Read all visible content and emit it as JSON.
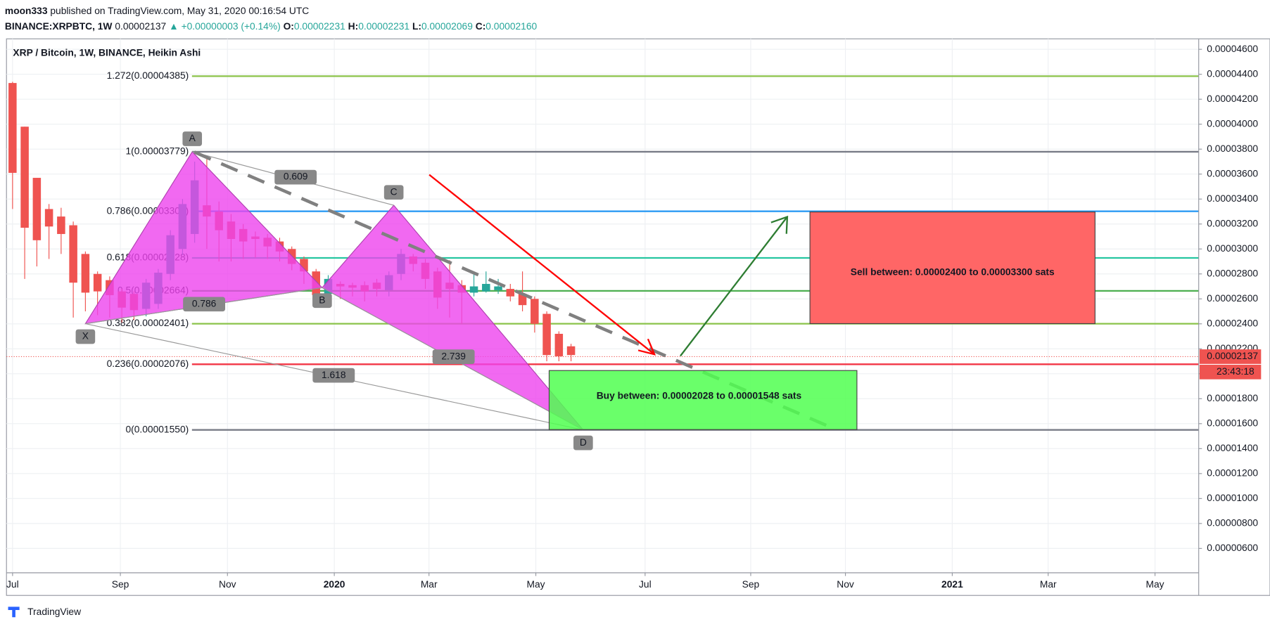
{
  "header": {
    "author": "moon333",
    "published": "published on TradingView.com, May 31, 2020 00:16:54 UTC",
    "symbol": "BINANCE:XRPBTC, 1W",
    "price": "0.00002137",
    "change": "+0.00000003 (+0.14%)",
    "ohlc": [
      {
        "key": "O:",
        "value": "0.00002231"
      },
      {
        "key": "H:",
        "value": "0.00002231"
      },
      {
        "key": "L:",
        "value": "0.00002069"
      },
      {
        "key": "C:",
        "value": "0.00002160"
      }
    ]
  },
  "footer": "TradingView",
  "chart_data": {
    "type": "candlestick",
    "title": "XRP / Bitcoin, 1W, BINANCE, Heikin Ashi",
    "x": [
      0,
      1,
      2,
      3,
      4,
      5,
      6,
      7,
      8,
      9,
      10,
      11,
      12,
      13,
      14,
      15,
      16,
      17,
      18,
      19,
      20,
      21,
      22,
      23,
      24,
      25,
      26,
      27,
      28,
      29,
      30,
      31,
      32,
      33,
      34,
      35,
      36,
      37,
      38,
      39,
      40,
      41,
      42,
      43,
      44,
      45,
      46
    ],
    "open": [
      4.33e-05,
      3.98e-05,
      3.57e-05,
      3.32e-05,
      3.26e-05,
      3.19e-05,
      2.96e-05,
      2.8e-05,
      2.75e-05,
      2.66e-05,
      2.64e-05,
      2.52e-05,
      2.56e-05,
      2.8e-05,
      3e-05,
      3.12e-05,
      3.35e-05,
      3.3e-05,
      3.22e-05,
      3.16e-05,
      3.1e-05,
      3.09e-05,
      3.06e-05,
      3e-05,
      2.92e-05,
      2.82e-05,
      2.64e-05,
      2.72e-05,
      2.71e-05,
      2.71e-05,
      2.73e-05,
      2.67e-05,
      2.8e-05,
      2.94e-05,
      2.89e-05,
      2.82e-05,
      2.73e-05,
      2.71e-05,
      2.65e-05,
      2.66e-05,
      2.67e-05,
      2.68e-05,
      2.64e-05,
      2.6e-05,
      2.48e-05,
      2.32e-05,
      2.22e-05
    ],
    "high": [
      4.34e-05,
      3.98e-05,
      3.57e-05,
      3.36e-05,
      3.33e-05,
      3.22e-05,
      2.98e-05,
      2.82e-05,
      2.78e-05,
      2.68e-05,
      2.66e-05,
      2.76e-05,
      2.84e-05,
      3.15e-05,
      3.4e-05,
      3.7e-05,
      3.75e-05,
      3.38e-05,
      3.28e-05,
      3.2e-05,
      3.14e-05,
      3.12e-05,
      3.09e-05,
      3.02e-05,
      2.94e-05,
      2.84e-05,
      2.79e-05,
      2.74e-05,
      2.73e-05,
      2.74e-05,
      2.76e-05,
      2.82e-05,
      3e-05,
      2.96e-05,
      2.92e-05,
      2.85e-05,
      2.91e-05,
      2.75e-05,
      2.8e-05,
      2.82e-05,
      2.76e-05,
      2.72e-05,
      2.82e-05,
      2.62e-05,
      2.5e-05,
      2.34e-05,
      2.24e-05
    ],
    "low": [
      3.32e-05,
      2.76e-05,
      2.86e-05,
      2.92e-05,
      2.96e-05,
      2.45e-05,
      2.5e-05,
      2.47e-05,
      2.45e-05,
      2.41e-05,
      2.43e-05,
      2.46e-05,
      2.52e-05,
      2.75e-05,
      2.95e-05,
      3.05e-05,
      3e-05,
      2.9e-05,
      2.9e-05,
      2.92e-05,
      2.93e-05,
      2.92e-05,
      2.9e-05,
      2.83e-05,
      2.72e-05,
      2.54e-05,
      2.56e-05,
      2.6e-05,
      2.62e-05,
      2.58e-05,
      2.62e-05,
      2.62e-05,
      2.75e-05,
      2.82e-05,
      2.68e-05,
      2.52e-05,
      2.45e-05,
      2.4e-05,
      2.62e-05,
      2.65e-05,
      2.64e-05,
      2.58e-05,
      2.5e-05,
      2.33e-05,
      2.1e-05,
      2.1e-05,
      2.1e-05
    ],
    "close": [
      3.61e-05,
      3.17e-05,
      3.07e-05,
      3.18e-05,
      3.12e-05,
      2.73e-05,
      2.65e-05,
      2.66e-05,
      2.63e-05,
      2.53e-05,
      2.51e-05,
      2.73e-05,
      2.81e-05,
      3.11e-05,
      3.36e-05,
      3.55e-05,
      3.26e-05,
      3.15e-05,
      3.08e-05,
      3.06e-05,
      3.08e-05,
      3.02e-05,
      2.98e-05,
      2.88e-05,
      2.82e-05,
      2.63e-05,
      2.76e-05,
      2.7e-05,
      2.69e-05,
      2.66e-05,
      2.68e-05,
      2.79e-05,
      2.96e-05,
      2.88e-05,
      2.76e-05,
      2.61e-05,
      2.68e-05,
      2.65e-05,
      2.7e-05,
      2.72e-05,
      2.7e-05,
      2.62e-05,
      2.55e-05,
      2.4e-05,
      2.15e-05,
      2.14e-05,
      2.15e-05
    ],
    "up_color": "#26a69a",
    "down_color": "#ef5350",
    "xlim": [
      -0.5,
      97.7
    ],
    "xticks": [
      {
        "value": 0,
        "label": "Jul"
      },
      {
        "value": 8.88,
        "label": "Sep"
      },
      {
        "value": 17.7,
        "label": "Nov"
      },
      {
        "value": 26.5,
        "label": "2020"
      },
      {
        "value": 34.3,
        "label": "Mar"
      },
      {
        "value": 43.1,
        "label": "May"
      },
      {
        "value": 52.1,
        "label": "Jul"
      },
      {
        "value": 60.8,
        "label": "Sep"
      },
      {
        "value": 68.6,
        "label": "Nov"
      },
      {
        "value": 77.4,
        "label": "2021"
      },
      {
        "value": 85.3,
        "label": "Mar"
      },
      {
        "value": 94.1,
        "label": "May"
      }
    ],
    "ylim": [
      4.05e-06,
      4.684e-05
    ],
    "yticks": [
      {
        "value": 4.6e-05,
        "label": "0.00004600"
      },
      {
        "value": 4.4e-05,
        "label": "0.00004400"
      },
      {
        "value": 4.2e-05,
        "label": "0.00004200"
      },
      {
        "value": 4e-05,
        "label": "0.00004000"
      },
      {
        "value": 3.8e-05,
        "label": "0.00003800"
      },
      {
        "value": 3.6e-05,
        "label": "0.00003600"
      },
      {
        "value": 3.4e-05,
        "label": "0.00003400"
      },
      {
        "value": 3.2e-05,
        "label": "0.00003200"
      },
      {
        "value": 3e-05,
        "label": "0.00003000"
      },
      {
        "value": 2.8e-05,
        "label": "0.00002800"
      },
      {
        "value": 2.6e-05,
        "label": "0.00002600"
      },
      {
        "value": 2.4e-05,
        "label": "0.00002400"
      },
      {
        "value": 2.2e-05,
        "label": "0.00002200"
      },
      {
        "value": 2e-05,
        "label": "0.00002000"
      },
      {
        "value": 1.8e-05,
        "label": "0.00001800"
      },
      {
        "value": 1.6e-05,
        "label": "0.00001600"
      },
      {
        "value": 1.4e-05,
        "label": "0.00001400"
      },
      {
        "value": 1.2e-05,
        "label": "0.00001200"
      },
      {
        "value": 1e-05,
        "label": "0.00001000"
      },
      {
        "value": 8e-06,
        "label": "0.00000800"
      },
      {
        "value": 6e-06,
        "label": "0.00000600"
      }
    ],
    "grid": true,
    "last_price": {
      "value": 2.137e-05,
      "label": "0.00002137",
      "countdown": "23:43:18",
      "color": "#ef5350"
    },
    "fib_levels": [
      {
        "label": "1.272(0.00004385)",
        "value": 4.385e-05,
        "color": "#8bc34a"
      },
      {
        "label": "1(0.00003779)",
        "value": 3.779e-05,
        "color": "#787b86"
      },
      {
        "label": "0.786(0.00003302)",
        "value": 3.302e-05,
        "color": "#2196f3"
      },
      {
        "label": "0.618(0.00002928)",
        "value": 2.928e-05,
        "color": "#26c6a0"
      },
      {
        "label": "0.5(0.00002664)",
        "value": 2.664e-05,
        "color": "#4caf50"
      },
      {
        "label": "0.382(0.00002401)",
        "value": 2.401e-05,
        "color": "#8bc34a"
      },
      {
        "label": "0.236(0.00002076)",
        "value": 2.076e-05,
        "color": "#f23645"
      },
      {
        "label": "0(0.00001550)",
        "value": 1.55e-05,
        "color": "#787b86"
      }
    ],
    "pattern": {
      "color": "#ee44ee",
      "points": [
        {
          "label": "X",
          "x": 6,
          "y": 2.401e-05
        },
        {
          "label": "A",
          "x": 14.8,
          "y": 3.779e-05
        },
        {
          "label": "B",
          "x": 25.5,
          "y": 2.69e-05
        },
        {
          "label": "C",
          "x": 31.4,
          "y": 3.35e-05
        },
        {
          "label": "D",
          "x": 47,
          "y": 1.55e-05
        }
      ],
      "ratios": [
        0.609,
        0.786,
        2.739,
        1.618
      ]
    },
    "sell_zone": "Sell between: 0.00002400 to 0.00003300 sats",
    "buy_zone": "Buy between: 0.00002028 to 0.00001548 sats"
  }
}
